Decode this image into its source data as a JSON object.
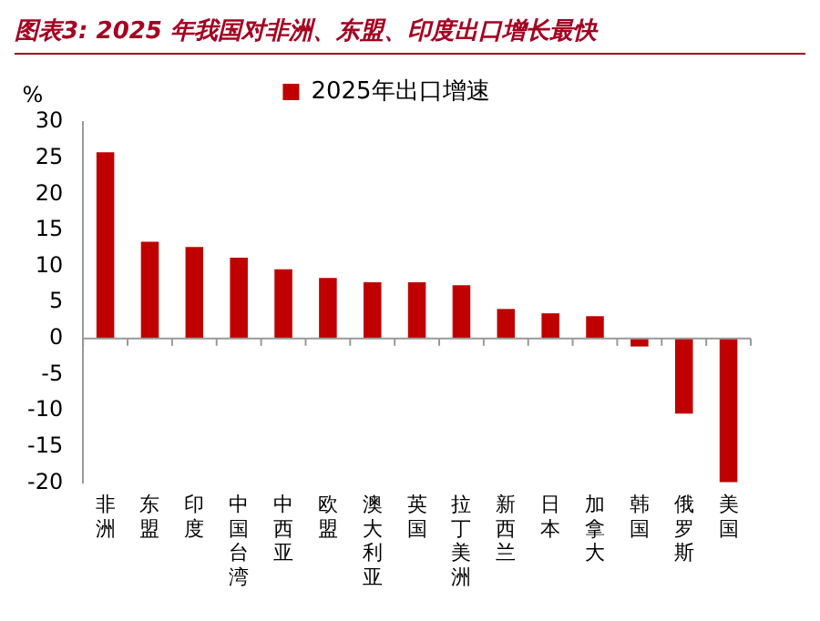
{
  "chart_data": {
    "type": "bar",
    "title": "图表3:  2025 年我国对非洲、东盟、印度出口增长最快",
    "ylabel": "%",
    "categories": [
      "非洲",
      "东盟",
      "印度",
      "中国台湾",
      "中西亚",
      "欧盟",
      "澳大利亚",
      "英国",
      "拉丁美洲",
      "新西兰",
      "日本",
      "加拿大",
      "韩国",
      "俄罗斯",
      "美国"
    ],
    "series": [
      {
        "name": "2025年出口增速",
        "color": "#c00000",
        "values": [
          25.8,
          13.4,
          12.7,
          11.2,
          9.6,
          8.4,
          7.8,
          7.8,
          7.4,
          4.1,
          3.5,
          3.1,
          -1.1,
          -10.4,
          -19.9
        ]
      }
    ],
    "ylim": [
      -20,
      30
    ],
    "yticks": [
      -20,
      -15,
      -10,
      -5,
      0,
      5,
      10,
      15,
      20,
      25,
      30
    ],
    "legend": "top"
  }
}
